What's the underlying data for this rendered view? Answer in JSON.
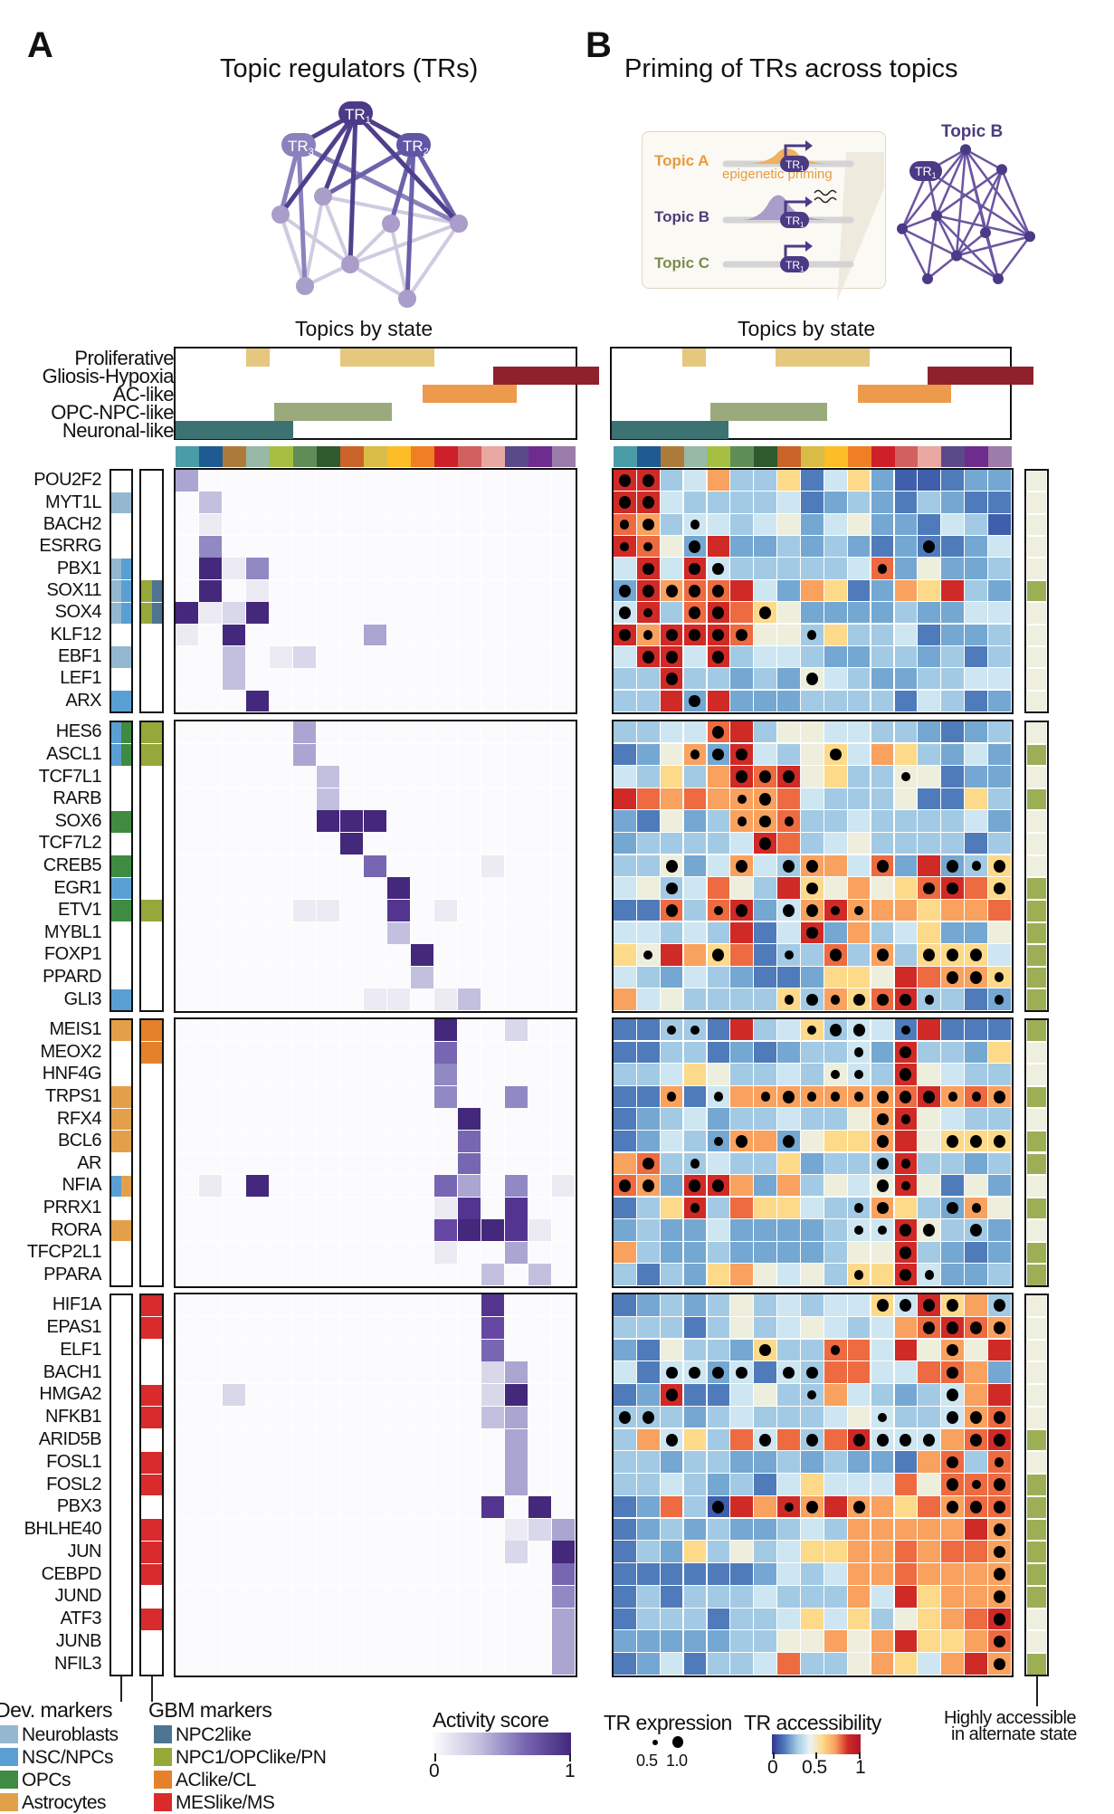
{
  "panel_a": {
    "letter": "A",
    "title": "Topic regulators (TRs)",
    "network_nodes": [
      "TR1",
      "TR2",
      "TR3"
    ],
    "topics_by_state_title": "Topics by state"
  },
  "panel_b": {
    "letter": "B",
    "title": "Priming of TRs across topics",
    "inset": {
      "topic_a": "Topic A",
      "topic_b": "Topic B",
      "topic_c": "Topic C",
      "priming_label": "epigenetic priming",
      "tr_label": "TR1",
      "network_title": "Topic B"
    },
    "topics_by_state_title": "Topics by state"
  },
  "colors": {
    "topic_strip": [
      "#4a9ca6",
      "#1e5b92",
      "#ac7b3a",
      "#97b9a6",
      "#a6be42",
      "#5f8d57",
      "#2f5a2d",
      "#c9632a",
      "#d9bc47",
      "#fcbd27",
      "#f07f24",
      "#cf2029",
      "#d2605e",
      "#eaa8a2",
      "#5a4a8a",
      "#6e2d8e",
      "#9c7caa"
    ],
    "states": {
      "Proliferative": "#e5c77d",
      "Gliosis-Hypoxia": "#8f212c",
      "AC-like": "#ee9a4c",
      "OPC-NPC-like": "#9aaa7d",
      "Neuronal-like": "#3d7272"
    },
    "dev": {
      "Neuroblasts": "#95b8d1",
      "NSC/NPCs": "#5a9fd4",
      "OPCs": "#3e8b41",
      "Astrocytes": "#e2a04a"
    },
    "gbm": {
      "NPC2like": "#4f7491",
      "NPC1/OPClike/PN": "#96a83a",
      "AClike/CL": "#e5812a",
      "MESlike/MS": "#d92b2c"
    },
    "accessible_on": "#9caf55",
    "accessible_off": "#eeefdf"
  },
  "chart_data": {
    "type": "heatmap",
    "topics_by_state": {
      "rows": [
        "Proliferative",
        "Gliosis-Hypoxia",
        "AC-like",
        "OPC-NPC-like",
        "Neuronal-like"
      ],
      "n_topics": 17,
      "spans_in_topic_units": {
        "Proliferative": [
          [
            3,
            4
          ],
          [
            7,
            11
          ]
        ],
        "Gliosis-Hypoxia": [
          [
            13.5,
            18
          ]
        ],
        "AC-like": [
          [
            10.5,
            14.5
          ]
        ],
        "OPC-NPC-like": [
          [
            4.2,
            9.2
          ]
        ],
        "Neuronal-like": [
          [
            0,
            5
          ]
        ]
      }
    },
    "activity_legend": {
      "title": "Activity score",
      "ticks": [
        "0",
        "1"
      ],
      "range": [
        0,
        1
      ]
    },
    "expression_legend": {
      "title": "TR expression",
      "sizes": [
        "0.5",
        "1.0"
      ]
    },
    "accessibility_legend": {
      "title": "TR accessibility",
      "ticks": [
        "0",
        "0.5",
        "1"
      ],
      "range": [
        0,
        1
      ]
    },
    "accessible_legend": {
      "title_line1": "Highly accessible",
      "title_line2": "in alternate state"
    },
    "dev_legend": {
      "title": "Dev. markers",
      "items": [
        "Neuroblasts",
        "NSC/NPCs",
        "OPCs",
        "Astrocytes"
      ]
    },
    "gbm_legend": {
      "title": "GBM markers",
      "items": [
        "NPC2like",
        "NPC1/OPClike/PN",
        "AClike/CL",
        "MESlike/MS"
      ]
    },
    "value_encoding": "activity: digit 0-9 => 0..1; access: digit 0-9 => 0..1 (blue->red); dots: 0 none,1 small(0.5),2 large(1.0)",
    "blocks": [
      {
        "genes": [
          "POU2F2",
          "MYT1L",
          "BACH2",
          "ESRRG",
          "PBX1",
          "SOX11",
          "SOX4",
          "KLF12",
          "EBF1",
          "LEF1",
          "ARX"
        ],
        "dev": [
          [],
          [
            "Neuroblasts"
          ],
          [],
          [],
          [
            "Neuroblasts",
            "NSC/NPCs"
          ],
          [
            "Neuroblasts",
            "NSC/NPCs"
          ],
          [
            "Neuroblasts",
            "NSC/NPCs"
          ],
          [],
          [
            "Neuroblasts"
          ],
          [],
          [
            "NSC/NPCs"
          ]
        ],
        "gbm": [
          [],
          [],
          [],
          [],
          [],
          [
            "NPC1/OPClike/PN",
            "NPC2like"
          ],
          [
            "NPC1/OPClike/PN",
            "NPC2like"
          ],
          [],
          [],
          [],
          []
        ],
        "activity": [
          "40000000000000000",
          "03000000000000000",
          "01000000000000000",
          "05000000000000000",
          "09150000000000000",
          "09010000000000000",
          "91290000000000000",
          "10900000400000000",
          "00301200000000000",
          "00300000000000000",
          "00090000000000000"
        ],
        "access": [
          "99347336146200122",
          "99433334123213211",
          "87344345245221430",
          "98529223232121124",
          "49494333334825223",
          "29788942761276932",
          "49389865222232244",
          "97999855363341223",
          "49949344322332313",
          "33933232543223344",
          "33929222333314312"
        ],
        "dots": [
          "22000000000000000",
          "22000000000000000",
          "12010000000000000",
          "11020000000002000",
          "02022000000100000",
          "22222000000000000",
          "21022020000000000",
          "21222200100000000",
          "02202000000000000",
          "00200000200000000",
          "00020000000000000"
        ],
        "accessible": [
          0,
          0,
          0,
          0,
          0,
          1,
          0,
          0,
          0,
          0,
          0
        ]
      },
      {
        "genes": [
          "HES6",
          "ASCL1",
          "TCF7L1",
          "RARB",
          "SOX6",
          "TCF7L2",
          "CREB5",
          "EGR1",
          "ETV1",
          "MYBL1",
          "FOXP1",
          "PPARD",
          "GLI3"
        ],
        "dev": [
          [
            "NSC/NPCs",
            "OPCs"
          ],
          [
            "NSC/NPCs",
            "OPCs"
          ],
          [],
          [],
          [
            "OPCs"
          ],
          [],
          [
            "OPCs"
          ],
          [
            "NSC/NPCs"
          ],
          [
            "OPCs"
          ],
          [],
          [],
          [],
          [
            "NSC/NPCs"
          ]
        ],
        "gbm": [
          [
            "NPC1/OPClike/PN"
          ],
          [
            "NPC1/OPClike/PN"
          ],
          [],
          [],
          [],
          [],
          [],
          [],
          [
            "NPC1/OPClike/PN"
          ],
          [],
          [],
          [],
          []
        ],
        "activity": [
          "00000400000000000",
          "00000400000000000",
          "00000030000000000",
          "00000030000000000",
          "00000099900000000",
          "00000009000000000",
          "00000000600001000",
          "00000000090000000",
          "00000110080100000",
          "00000000030000000",
          "00000000009000000",
          "00000000003000000",
          "00000000110130000"
        ],
        "access": [
          "33448935544332123",
          "12572943564763242",
          "43637989563355122",
          "98787778433351163",
          "21523778334333342",
          "23333498345333313",
          "33524743774829236",
          "45348539657568986",
          "11838924797776778",
          "44343914927346225",
          "65976813383736664",
          "43243211266598776",
          "74533336376893312"
        ],
        "dots": [
          "00002000000000000",
          "00012200020000000",
          "00000222000010000",
          "00000120000000000",
          "00000121000000000",
          "00000020000000000",
          "00200202200200212",
          "00200000200002202",
          "00201202211000000",
          "00000000200000000",
          "01002001020202220",
          "00000000000000221",
          "00000001212221001"
        ],
        "accessible": [
          0,
          1,
          0,
          1,
          0,
          0,
          0,
          1,
          1,
          1,
          1,
          1,
          1
        ]
      },
      {
        "genes": [
          "MEIS1",
          "MEOX2",
          "HNF4G",
          "TRPS1",
          "RFX4",
          "BCL6",
          "AR",
          "NFIA",
          "PRRX1",
          "RORA",
          "TFCP2L1",
          "PPARA"
        ],
        "dev": [
          [
            "Astrocytes"
          ],
          [],
          [],
          [
            "Astrocytes"
          ],
          [
            "Astrocytes"
          ],
          [
            "Astrocytes"
          ],
          [],
          [
            "NSC/NPCs",
            "Astrocytes"
          ],
          [],
          [
            "Astrocytes"
          ],
          [],
          []
        ],
        "gbm": [
          [
            "AClike/CL"
          ],
          [
            "AClike/CL"
          ],
          [],
          [],
          [],
          [],
          [],
          [],
          [],
          [],
          [],
          []
        ],
        "activity": [
          "00000000000900200",
          "00000000000600000",
          "00000000000500000",
          "00000000000500500",
          "00000000000090000",
          "00000000000060000",
          "00000000000060000",
          "01090000000640501",
          "00000000000180800",
          "00000000000799810",
          "00000000000100400",
          "00000000000003030"
        ],
        "access": [
          "11331934634419111",
          "11331212334293326",
          "33465334354395433",
          "11714777777789787",
          "12342334335795433",
          "12432772566795666",
          "78334336233393323",
          "87299727354595152",
          "13693866433763275",
          "23224222234495332",
          "73223222235593212",
          "31326754536694223"
        ],
        "dots": [
          "00110000122010000",
          "00000000001020000",
          "00000000011020000",
          "00101012111222112",
          "00000000000210000",
          "00001202000200222",
          "02010000000210000",
          "22022000000210000",
          "00010000001200210",
          "00000000001122020",
          "00000000000020000",
          "00000000001021000"
        ],
        "accessible": [
          1,
          0,
          0,
          1,
          0,
          1,
          1,
          0,
          1,
          0,
          1,
          1
        ]
      },
      {
        "genes": [
          "HIF1A",
          "EPAS1",
          "ELF1",
          "BACH1",
          "HMGA2",
          "NFKB1",
          "ARID5B",
          "FOSL1",
          "FOSL2",
          "PBX3",
          "BHLHE40",
          "JUN",
          "CEBPD",
          "JUND",
          "ATF3",
          "JUNB",
          "NFIL3"
        ],
        "dev": [
          [],
          [],
          [],
          [],
          [],
          [],
          [],
          [],
          [],
          [],
          [],
          [],
          [],
          [],
          [],
          [],
          []
        ],
        "gbm": [
          [
            "MESlike/MS"
          ],
          [
            "MESlike/MS"
          ],
          [],
          [],
          [
            "MESlike/MS"
          ],
          [
            "MESlike/MS"
          ],
          [],
          [
            "MESlike/MS"
          ],
          [
            "MESlike/MS"
          ],
          [],
          [
            "MESlike/MS"
          ],
          [
            "MESlike/MS"
          ],
          [
            "MESlike/MS"
          ],
          [],
          [
            "MESlike/MS"
          ],
          [],
          []
        ],
        "activity": [
          "00000000000008000",
          "00000000000007000",
          "00000000000006000",
          "00000000000002400",
          "00200000000002900",
          "00000000000003400",
          "00000000000000400",
          "00000000000000400",
          "00000000000000400",
          "00000000000008090",
          "00000000000000124",
          "00000000000000209",
          "00000000000000006",
          "00000000000000005",
          "00000000000000004",
          "00000000000000004",
          "00000000000000004"
        ],
        "access": [
          "12323534344649673",
          "33313534543478987",
          "21533263388495759",
          "41442414388448872",
          "12911453374323479",
          "33323433345433478",
          "37463848389444789",
          "33233223232217838",
          "33432314644485888",
          "12830979797768788",
          "12323223437777797",
          "13263534667787887",
          "11111124347787777",
          "13133343337496777",
          "13331334646356789",
          "22222335575796678",
          "12413348335764797"
        ],
        "dots": [
          "00000000000222202",
          "00000000000002222",
          "00000020010000200",
          "00222202200000200",
          "00200000100000200",
          "22000000000100222",
          "00200020202222022",
          "00000000000000201",
          "00000000000000212",
          "00002001202000222",
          "00000000000000002",
          "00000000000000002",
          "00000000000000002",
          "00000000000000002",
          "00000000000000002",
          "00000000000000002",
          "00000000000000002"
        ],
        "accessible": [
          0,
          0,
          0,
          0,
          0,
          0,
          1,
          0,
          1,
          1,
          1,
          1,
          1,
          1,
          0,
          0,
          1
        ]
      }
    ]
  }
}
